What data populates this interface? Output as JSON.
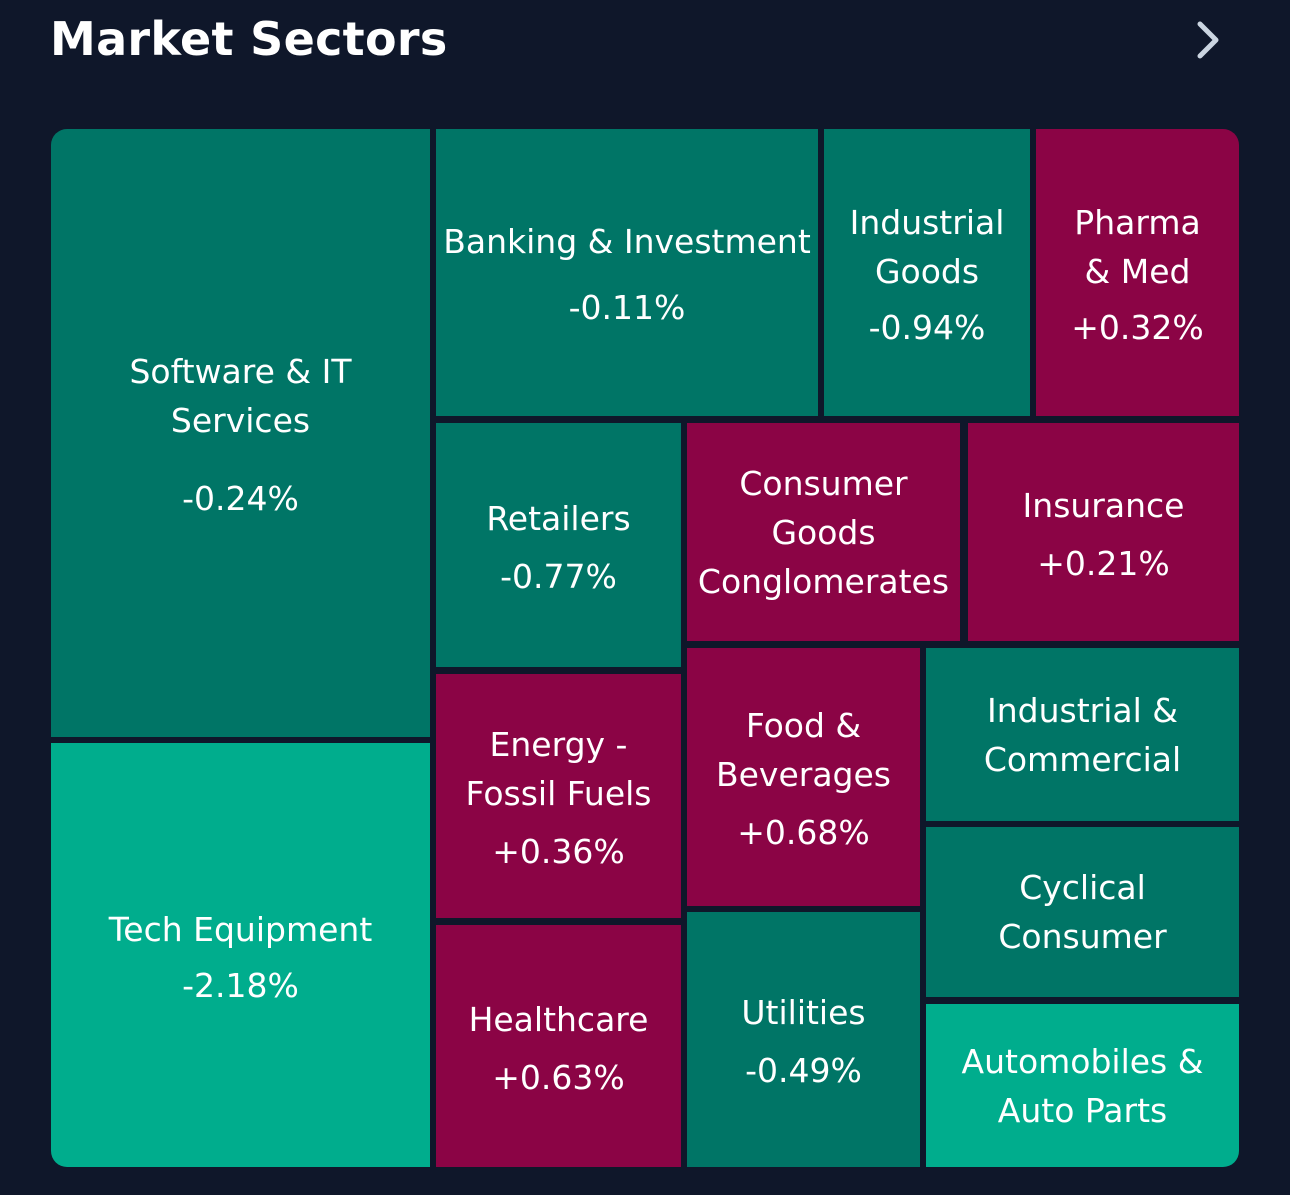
{
  "header": {
    "title": "Market Sectors",
    "chevron_icon": "chevron-right-icon"
  },
  "colors": {
    "background": "#0f172a",
    "down_moderate": "#007566",
    "down_strong": "#00ad8d",
    "up": "#8b0445"
  },
  "sectors": [
    {
      "name": "Software & IT Services",
      "change": "-0.24%"
    },
    {
      "name": "Tech Equipment",
      "change": "-2.18%"
    },
    {
      "name": "Banking & Investment",
      "change": "-0.11%"
    },
    {
      "name": "Industrial\nGoods",
      "change": "-0.94%"
    },
    {
      "name": "Pharma\n& Med",
      "change": "+0.32%"
    },
    {
      "name": "Retailers",
      "change": "-0.77%"
    },
    {
      "name": "Consumer\nGoods\nConglomerates",
      "change": ""
    },
    {
      "name": "Insurance",
      "change": "+0.21%"
    },
    {
      "name": "Energy -\nFossil Fuels",
      "change": "+0.36%"
    },
    {
      "name": "Food &\nBeverages",
      "change": "+0.68%"
    },
    {
      "name": "Industrial &\nCommercial",
      "change": ""
    },
    {
      "name": "Healthcare",
      "change": "+0.63%"
    },
    {
      "name": "Utilities",
      "change": "-0.49%"
    },
    {
      "name": "Cyclical\nConsumer",
      "change": ""
    },
    {
      "name": "Automobiles &\nAuto Parts",
      "change": ""
    }
  ]
}
